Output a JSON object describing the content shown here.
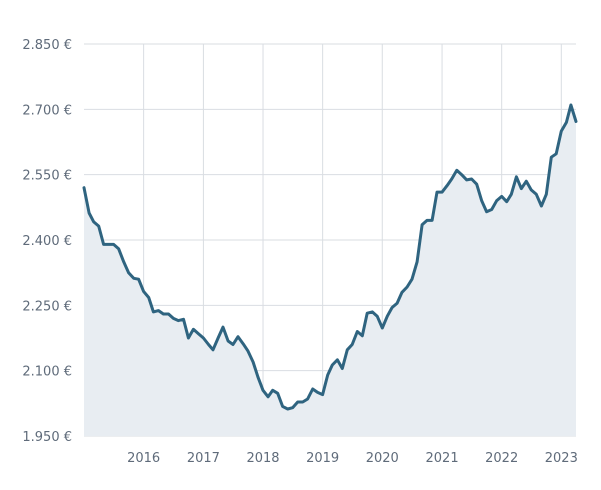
{
  "chart_data": {
    "type": "area",
    "title": "",
    "xlabel": "",
    "ylabel": "",
    "x_start": "2015-01",
    "x_end": "2023-04",
    "ylim": [
      1950,
      2850
    ],
    "y_ticks": [
      1950,
      2100,
      2250,
      2400,
      2550,
      2700,
      2850
    ],
    "y_tick_labels": [
      "1.950 €",
      "2.100 €",
      "2.250 €",
      "2.400 €",
      "2.550 €",
      "2.700 €",
      "2.850 €"
    ],
    "x_ticks": [
      "2016",
      "2017",
      "2018",
      "2019",
      "2020",
      "2021",
      "2022",
      "2023"
    ],
    "grid": true,
    "colors": {
      "line": "#2f6480",
      "fill": "#e8edf2",
      "grid": "#d9dde2"
    },
    "series": [
      {
        "x": [
          "2015-01",
          "2015-02",
          "2015-03",
          "2015-04",
          "2015-05",
          "2015-06",
          "2015-07",
          "2015-08",
          "2015-09",
          "2015-10",
          "2015-11",
          "2015-12",
          "2016-01",
          "2016-02",
          "2016-03",
          "2016-04",
          "2016-05",
          "2016-06",
          "2016-07",
          "2016-08",
          "2016-09",
          "2016-10",
          "2016-11",
          "2016-12",
          "2017-01",
          "2017-02",
          "2017-03",
          "2017-04",
          "2017-05",
          "2017-06",
          "2017-07",
          "2017-08",
          "2017-09",
          "2017-10",
          "2017-11",
          "2017-12",
          "2018-01",
          "2018-02",
          "2018-03",
          "2018-04",
          "2018-05",
          "2018-06",
          "2018-07",
          "2018-08",
          "2018-09",
          "2018-10",
          "2018-11",
          "2018-12",
          "2019-01",
          "2019-02",
          "2019-03",
          "2019-04",
          "2019-05",
          "2019-06",
          "2019-07",
          "2019-08",
          "2019-09",
          "2019-10",
          "2019-11",
          "2019-12",
          "2020-01",
          "2020-02",
          "2020-03",
          "2020-04",
          "2020-05",
          "2020-06",
          "2020-07",
          "2020-08",
          "2020-09",
          "2020-10",
          "2020-11",
          "2020-12",
          "2021-01",
          "2021-02",
          "2021-03",
          "2021-04",
          "2021-05",
          "2021-06",
          "2021-07",
          "2021-08",
          "2021-09",
          "2021-10",
          "2021-11",
          "2021-12",
          "2022-01",
          "2022-02",
          "2022-03",
          "2022-04",
          "2022-05",
          "2022-06",
          "2022-07",
          "2022-08",
          "2022-09",
          "2022-10",
          "2022-11",
          "2022-12",
          "2023-01",
          "2023-02",
          "2023-03",
          "2023-04"
        ],
        "values": [
          2520,
          2462,
          2442,
          2432,
          2390,
          2390,
          2390,
          2380,
          2350,
          2325,
          2312,
          2310,
          2282,
          2268,
          2235,
          2238,
          2230,
          2230,
          2220,
          2215,
          2218,
          2175,
          2195,
          2185,
          2175,
          2160,
          2148,
          2175,
          2200,
          2168,
          2160,
          2178,
          2162,
          2145,
          2120,
          2085,
          2055,
          2040,
          2055,
          2048,
          2018,
          2012,
          2015,
          2028,
          2028,
          2035,
          2058,
          2050,
          2045,
          2090,
          2113,
          2125,
          2105,
          2148,
          2160,
          2190,
          2180,
          2232,
          2235,
          2225,
          2198,
          2225,
          2245,
          2255,
          2280,
          2292,
          2310,
          2350,
          2435,
          2445,
          2445,
          2510,
          2510,
          2525,
          2540,
          2560,
          2550,
          2538,
          2540,
          2528,
          2490,
          2465,
          2470,
          2490,
          2500,
          2488,
          2505,
          2545,
          2518,
          2535,
          2515,
          2505,
          2478,
          2505,
          2590,
          2598,
          2650,
          2670,
          2710,
          2672
        ]
      }
    ]
  }
}
